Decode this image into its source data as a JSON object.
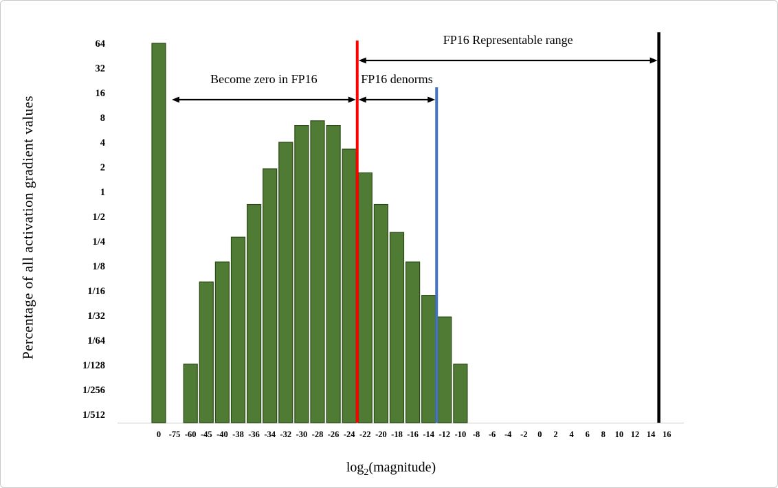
{
  "figure": {
    "y_axis_title": "Percentage of all activation gradient values",
    "x_axis_title": {
      "base": "log",
      "sub": "2",
      "rest": "(magnitude)"
    }
  },
  "chart_data": {
    "type": "bar",
    "title": "",
    "xlabel": "log2(magnitude)",
    "ylabel": "Percentage of all activation gradient values",
    "y_scale": "log2",
    "grid": false,
    "ylim": [
      "1/512",
      "64"
    ],
    "y_ticks": [
      "64",
      "32",
      "16",
      "8",
      "4",
      "2",
      "1",
      "1/2",
      "1/4",
      "1/8",
      "1/16",
      "1/32",
      "1/64",
      "1/128",
      "1/256",
      "1/512"
    ],
    "y_tick_values": [
      64,
      32,
      16,
      8,
      4,
      2,
      1,
      0.5,
      0.25,
      0.125,
      0.0625,
      0.03125,
      0.015625,
      0.0078125,
      0.00390625,
      0.001953125
    ],
    "categories": [
      "0",
      "-75",
      "-60",
      "-45",
      "-40",
      "-38",
      "-36",
      "-34",
      "-32",
      "-30",
      "-28",
      "-26",
      "-24",
      "-22",
      "-20",
      "-18",
      "-16",
      "-14",
      "-12",
      "-10",
      "-8",
      "-6",
      "-4",
      "-2",
      "0",
      "2",
      "4",
      "6",
      "8",
      "10",
      "12",
      "14",
      "16"
    ],
    "values": [
      64,
      0,
      0.008,
      0.08,
      0.14,
      0.28,
      0.7,
      1.9,
      4.0,
      6.4,
      7.3,
      6.4,
      3.3,
      1.7,
      0.7,
      0.32,
      0.14,
      0.055,
      0.03,
      0.008,
      0,
      0,
      0,
      0,
      0,
      0,
      0,
      0,
      0,
      0,
      0,
      0,
      0
    ],
    "bar_color": "#4f7b34",
    "bar_border_color": "#2b4a16",
    "axis_line_color": "#c8c8c8",
    "reference_lines": [
      {
        "name": "fp16-min-denorm-line",
        "color": "#ff0000",
        "after_category": "-24"
      },
      {
        "name": "fp16-min-normal-line",
        "color": "#4472c4",
        "after_category": "-14"
      },
      {
        "name": "fp16-max-line",
        "color": "#000000",
        "after_category": "14"
      }
    ],
    "annotations": [
      {
        "name": "fp16-representable-range-label",
        "text": "FP16 Representable range",
        "from": "line:0",
        "to": "line:2"
      },
      {
        "name": "become-zero-in-fp16-label",
        "text": "Become zero in FP16",
        "from": "zero-bar",
        "to": "line:0"
      },
      {
        "name": "fp16-denorms-label",
        "text": "FP16 denorms",
        "from": "line:0",
        "to": "line:1"
      }
    ]
  }
}
